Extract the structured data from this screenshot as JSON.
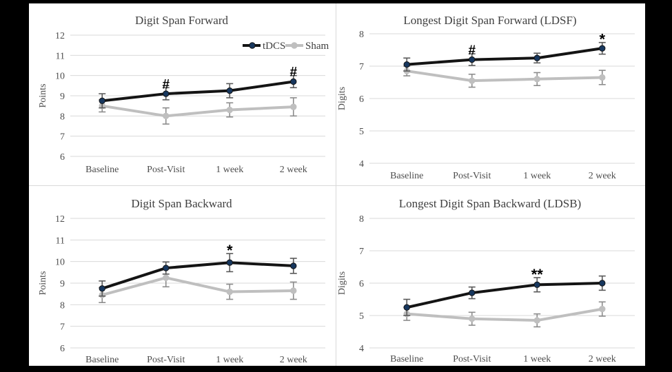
{
  "figure": {
    "background_color": "#000000",
    "panel_background": "#ffffff",
    "divider_color": "#d9d9d9",
    "gridline_color": "#d9d9d9",
    "text_color": "#4d4d4d",
    "annotation_color": "#000000"
  },
  "legend": {
    "position": "top-right-of-first-panel",
    "items": [
      {
        "label": "tDCS",
        "line_color": "#141414",
        "marker_color": "#17375e"
      },
      {
        "label": "Sham",
        "line_color": "#bfbfbf",
        "marker_color": "#bfbfbf"
      }
    ]
  },
  "chart_data": [
    {
      "type": "line",
      "title": "Digit Span Forward",
      "ylabel": "Points",
      "xlabel": "",
      "ylim": [
        6,
        12
      ],
      "yticks": [
        6,
        7,
        8,
        9,
        10,
        11,
        12
      ],
      "grid": true,
      "legend_position": "top-right",
      "categories": [
        "Baseline",
        "Post-Visit",
        "1 week",
        "2 week"
      ],
      "series": [
        {
          "name": "Sham",
          "color": "#bfbfbf",
          "marker_color": "#bfbfbf",
          "error_color": "#8c8c8c",
          "values": [
            8.5,
            8.0,
            8.3,
            8.45
          ],
          "errors": [
            0.3,
            0.4,
            0.35,
            0.45
          ]
        },
        {
          "name": "tDCS",
          "color": "#141414",
          "marker_color": "#17375e",
          "error_color": "#595959",
          "values": [
            8.75,
            9.1,
            9.25,
            9.7
          ],
          "errors": [
            0.35,
            0.3,
            0.35,
            0.3
          ]
        }
      ],
      "annotations": [
        {
          "text": "#",
          "series": "tDCS",
          "category": "Post-Visit",
          "category_index": 1
        },
        {
          "text": "#",
          "series": "tDCS",
          "category": "2 week",
          "category_index": 3
        }
      ]
    },
    {
      "type": "line",
      "title": "Longest Digit Span Forward (LDSF)",
      "ylabel": "Digits",
      "xlabel": "",
      "ylim": [
        4,
        8
      ],
      "yticks": [
        4,
        5,
        6,
        7,
        8
      ],
      "grid": true,
      "legend_position": "none",
      "categories": [
        "Baseline",
        "Post-Visit",
        "1 week",
        "2 week"
      ],
      "series": [
        {
          "name": "Sham",
          "color": "#bfbfbf",
          "marker_color": "#bfbfbf",
          "error_color": "#8c8c8c",
          "values": [
            6.85,
            6.55,
            6.6,
            6.65
          ],
          "errors": [
            0.15,
            0.2,
            0.2,
            0.22
          ]
        },
        {
          "name": "tDCS",
          "color": "#141414",
          "marker_color": "#17375e",
          "error_color": "#595959",
          "values": [
            7.05,
            7.2,
            7.25,
            7.55
          ],
          "errors": [
            0.2,
            0.18,
            0.15,
            0.18
          ]
        }
      ],
      "annotations": [
        {
          "text": "#",
          "series": "tDCS",
          "category": "Post-Visit",
          "category_index": 1
        },
        {
          "text": "*",
          "series": "tDCS",
          "category": "2 week",
          "category_index": 3
        }
      ]
    },
    {
      "type": "line",
      "title": "Digit Span Backward",
      "ylabel": "Points",
      "xlabel": "",
      "ylim": [
        6,
        12
      ],
      "yticks": [
        6,
        7,
        8,
        9,
        10,
        11,
        12
      ],
      "grid": true,
      "legend_position": "none",
      "categories": [
        "Baseline",
        "Post-Visit",
        "1 week",
        "2 week"
      ],
      "series": [
        {
          "name": "Sham",
          "color": "#bfbfbf",
          "marker_color": "#bfbfbf",
          "error_color": "#8c8c8c",
          "values": [
            8.45,
            9.25,
            8.6,
            8.65
          ],
          "errors": [
            0.35,
            0.42,
            0.35,
            0.4
          ]
        },
        {
          "name": "tDCS",
          "color": "#141414",
          "marker_color": "#17375e",
          "error_color": "#595959",
          "values": [
            8.75,
            9.7,
            9.95,
            9.8
          ],
          "errors": [
            0.35,
            0.28,
            0.42,
            0.35
          ]
        }
      ],
      "annotations": [
        {
          "text": "*",
          "series": "tDCS",
          "category": "1 week",
          "category_index": 2
        }
      ]
    },
    {
      "type": "line",
      "title": "Longest Digit Span Backward (LDSB)",
      "ylabel": "Digits",
      "xlabel": "",
      "ylim": [
        4,
        8
      ],
      "yticks": [
        4,
        5,
        6,
        7,
        8
      ],
      "grid": true,
      "legend_position": "none",
      "categories": [
        "Baseline",
        "Post-Visit",
        "1 week",
        "2 week"
      ],
      "series": [
        {
          "name": "Sham",
          "color": "#bfbfbf",
          "marker_color": "#bfbfbf",
          "error_color": "#8c8c8c",
          "values": [
            5.05,
            4.9,
            4.85,
            5.2
          ],
          "errors": [
            0.2,
            0.2,
            0.2,
            0.22
          ]
        },
        {
          "name": "tDCS",
          "color": "#141414",
          "marker_color": "#17375e",
          "error_color": "#595959",
          "values": [
            5.25,
            5.7,
            5.95,
            6.0
          ],
          "errors": [
            0.25,
            0.18,
            0.22,
            0.22
          ]
        }
      ],
      "annotations": [
        {
          "text": "**",
          "series": "tDCS",
          "category": "1 week",
          "category_index": 2
        }
      ]
    }
  ]
}
